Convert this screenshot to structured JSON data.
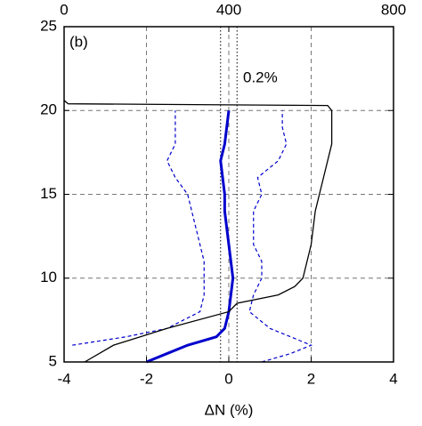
{
  "chart_data": {
    "type": "line",
    "panel_label": "(b)",
    "annotation": "0.2%",
    "xlabel": "ΔN (%)",
    "xlim": [
      -4,
      4
    ],
    "xticks": [
      -4,
      -2,
      0,
      2,
      4
    ],
    "x2lim": [
      0,
      800
    ],
    "x2ticks": [
      0,
      400,
      800
    ],
    "ylim": [
      5,
      25
    ],
    "yticks": [
      5,
      10,
      15,
      20,
      25
    ],
    "grid": true,
    "grid_x": [
      -2,
      0,
      2
    ],
    "grid_y": [
      10,
      15,
      20
    ],
    "reference_lines": [
      -0.2,
      0.2
    ],
    "altitudes": [
      5,
      5.5,
      6,
      6.5,
      7,
      8,
      9,
      10,
      11,
      12,
      13,
      14,
      15,
      16,
      17,
      18,
      19,
      20
    ],
    "series": [
      {
        "color": "#0000cc",
        "style": "solid",
        "width": 3,
        "values": [
          -2.0,
          -1.5,
          -1.0,
          -0.3,
          -0.1,
          0.0,
          0.05,
          0.1,
          0.05,
          0.0,
          -0.05,
          -0.1,
          -0.1,
          -0.15,
          -0.2,
          -0.1,
          -0.05,
          0.0
        ]
      },
      {
        "color": "#0000cc",
        "style": "dashed",
        "width": 1.2,
        "values": [
          null,
          null,
          -3.8,
          -2.5,
          -1.5,
          -0.7,
          -0.6,
          -0.6,
          -0.6,
          -0.7,
          -0.8,
          -0.9,
          -1.0,
          -1.3,
          -1.5,
          -1.3,
          -1.3,
          -1.3
        ]
      },
      {
        "color": "#0000cc",
        "style": "dashed",
        "width": 1.2,
        "values": [
          0.8,
          1.5,
          2.0,
          1.5,
          1.0,
          0.5,
          0.6,
          0.8,
          0.8,
          0.6,
          0.6,
          0.6,
          0.8,
          0.7,
          1.2,
          1.4,
          1.3,
          1.3
        ]
      },
      {
        "color": "#000000",
        "style": "solid",
        "width": 1.3,
        "axis": "x2",
        "altitudes": [
          5,
          6,
          7,
          8,
          8.5,
          9,
          9.5,
          10,
          11,
          12,
          14,
          16,
          18,
          20,
          20.3,
          20.4,
          20.6
        ],
        "values": [
          50,
          120,
          250,
          400,
          420,
          520,
          560,
          580,
          590,
          600,
          610,
          630,
          650,
          650,
          640,
          10,
          0
        ]
      }
    ]
  }
}
